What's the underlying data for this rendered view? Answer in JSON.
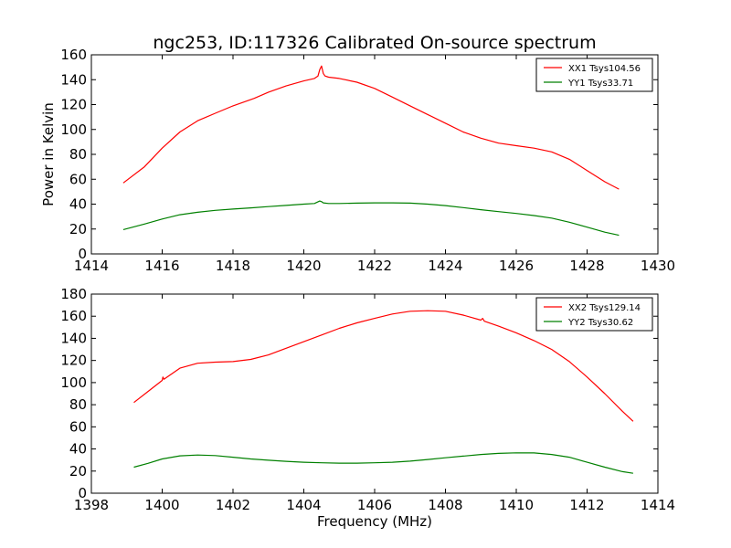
{
  "chart_data": [
    {
      "type": "line",
      "title": "ngc253, ID:117326 Calibrated On-source spectrum",
      "xlabel": "",
      "ylabel": "Power in Kelvin",
      "xlim": [
        1414,
        1430
      ],
      "ylim": [
        0,
        160
      ],
      "xticks": [
        "1414",
        "1416",
        "1418",
        "1420",
        "1422",
        "1424",
        "1426",
        "1428",
        "1430"
      ],
      "yticks": [
        "0",
        "20",
        "40",
        "60",
        "80",
        "100",
        "120",
        "140",
        "160"
      ],
      "legend_position": "top-right",
      "series": [
        {
          "name": "XX1 Tsys104.56",
          "color": "#ff0000",
          "x": [
            1414.9,
            1415.5,
            1416,
            1416.5,
            1417,
            1417.5,
            1418,
            1418.3,
            1418.6,
            1419,
            1419.5,
            1420,
            1420.3,
            1420.4,
            1420.45,
            1420.5,
            1420.55,
            1420.6,
            1420.7,
            1421,
            1421.5,
            1422,
            1422.5,
            1423,
            1423.5,
            1424,
            1424.5,
            1425,
            1425.5,
            1426,
            1426.5,
            1427,
            1427.5,
            1428,
            1428.5,
            1428.9
          ],
          "y": [
            57,
            70,
            85,
            98,
            107,
            113,
            119,
            122,
            125,
            130,
            135,
            139,
            141,
            143,
            148,
            151,
            145,
            143,
            142,
            141,
            138,
            133,
            126,
            119,
            112,
            105,
            98,
            93,
            89,
            87,
            85,
            82,
            76,
            67,
            58,
            52
          ]
        },
        {
          "name": "YY1 Tsys33.71",
          "color": "#008000",
          "x": [
            1414.9,
            1415.5,
            1416,
            1416.5,
            1417,
            1417.5,
            1418,
            1418.5,
            1419,
            1419.5,
            1420,
            1420.3,
            1420.45,
            1420.5,
            1420.55,
            1420.7,
            1421,
            1421.5,
            1422,
            1422.5,
            1423,
            1423.5,
            1424,
            1424.5,
            1425,
            1425.5,
            1426,
            1426.5,
            1427,
            1427.5,
            1428,
            1428.5,
            1428.9
          ],
          "y": [
            19.5,
            24,
            28,
            31.5,
            33.5,
            35,
            36,
            37,
            38,
            39,
            40,
            40.5,
            42.5,
            42,
            41,
            40.5,
            40.5,
            40.8,
            41,
            41,
            40.8,
            40,
            38.8,
            37.2,
            35.5,
            34,
            32.5,
            30.8,
            28.8,
            25.5,
            21.5,
            17.5,
            15
          ]
        }
      ]
    },
    {
      "type": "line",
      "title": "",
      "xlabel": "Frequency (MHz)",
      "ylabel": "",
      "xlim": [
        1398,
        1414
      ],
      "ylim": [
        0,
        180
      ],
      "xticks": [
        "1398",
        "1400",
        "1402",
        "1404",
        "1406",
        "1408",
        "1410",
        "1412",
        "1414"
      ],
      "yticks": [
        "0",
        "20",
        "40",
        "60",
        "80",
        "100",
        "120",
        "140",
        "160",
        "180"
      ],
      "legend_position": "top-right",
      "series": [
        {
          "name": "XX2 Tsys129.14",
          "color": "#ff0000",
          "x": [
            1399.2,
            1399.6,
            1400,
            1400.02,
            1400.05,
            1400.5,
            1401,
            1401.5,
            1402,
            1402.5,
            1403,
            1403.5,
            1404,
            1404.5,
            1405,
            1405.5,
            1406,
            1406.5,
            1407,
            1407.5,
            1408,
            1408.5,
            1409,
            1409.05,
            1409.1,
            1409.5,
            1410,
            1410.5,
            1411,
            1411.5,
            1412,
            1412.5,
            1413,
            1413.3
          ],
          "y": [
            82,
            92,
            102,
            105,
            103,
            113,
            117.5,
            118.5,
            119,
            121,
            125,
            131,
            137,
            143,
            149,
            154,
            158,
            162,
            164.5,
            165,
            164.5,
            161,
            156.5,
            158,
            155.5,
            151,
            145,
            138,
            130,
            119,
            105,
            90,
            74,
            65
          ]
        },
        {
          "name": "YY2 Tsys30.62",
          "color": "#008000",
          "x": [
            1399.2,
            1399.6,
            1400,
            1400.5,
            1401,
            1401.5,
            1402,
            1402.5,
            1403,
            1403.5,
            1404,
            1404.5,
            1405,
            1405.5,
            1406,
            1406.5,
            1407,
            1407.5,
            1408,
            1408.5,
            1409,
            1409.5,
            1410,
            1410.5,
            1411,
            1411.5,
            1412,
            1412.5,
            1413,
            1413.3
          ],
          "y": [
            23.5,
            27,
            31,
            33.8,
            34.5,
            34,
            32.5,
            31,
            29.8,
            28.8,
            28,
            27.5,
            27.2,
            27.2,
            27.5,
            28,
            29,
            30.5,
            32,
            33.5,
            35,
            36,
            36.5,
            36.4,
            35,
            32.5,
            28,
            23.5,
            19.5,
            18
          ]
        }
      ]
    }
  ]
}
